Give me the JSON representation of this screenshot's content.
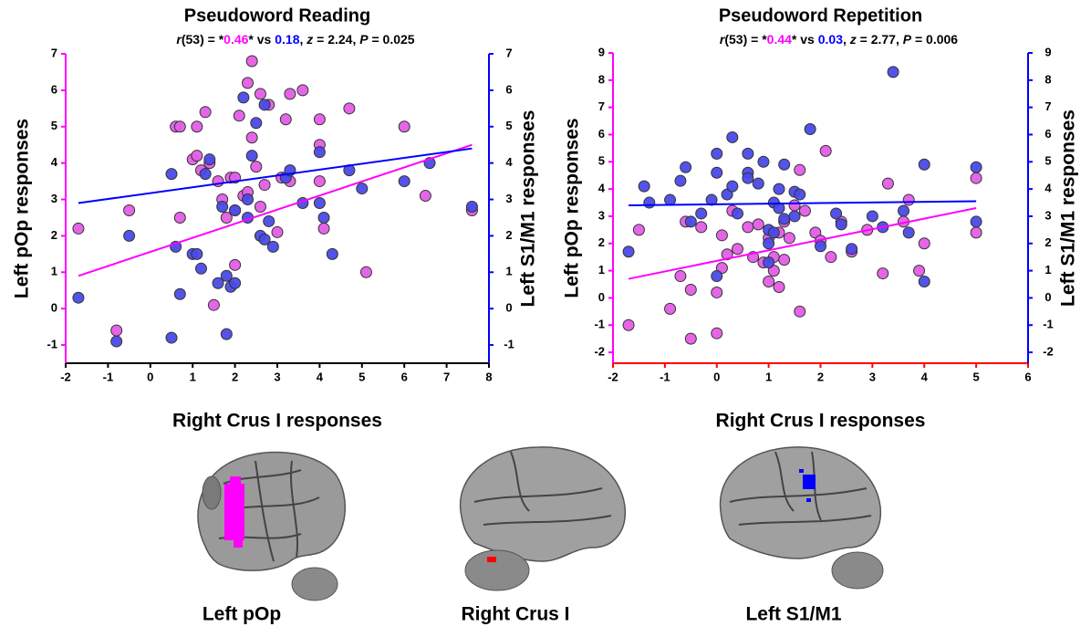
{
  "chart_data": [
    {
      "type": "scatter",
      "title": "Pseudoword Reading",
      "subtitle": [
        {
          "text": "r",
          "italic": true
        },
        {
          "text": "(53) = *"
        },
        {
          "text": "0.46",
          "color": "#ff00ff"
        },
        {
          "text": "* vs "
        },
        {
          "text": "0.18",
          "color": "#0000ff"
        },
        {
          "text": ", "
        },
        {
          "text": "z",
          "italic": true
        },
        {
          "text": " = 2.24, "
        },
        {
          "text": "P",
          "italic": true
        },
        {
          "text": " = 0.025"
        }
      ],
      "x_label": "Right Crus I responses",
      "y_label": "Left pOp responses",
      "y2_label": "Left S1/M1 responses",
      "xlim": [
        -2,
        8
      ],
      "xticks": [
        -2,
        -1,
        0,
        1,
        2,
        3,
        4,
        5,
        6,
        7,
        8
      ],
      "ylim": [
        -1.5,
        7
      ],
      "yticks": [
        -1,
        0,
        1,
        2,
        3,
        4,
        5,
        6,
        7
      ],
      "y2lim": [
        -1.5,
        7
      ],
      "y2ticks": [
        -1,
        0,
        1,
        2,
        3,
        4,
        5,
        6,
        7
      ],
      "x_axis_color": "#000000",
      "y_axis_color": "#ff00ff",
      "y2_axis_color": "#0000ff",
      "series": [
        {
          "color": "#e35ee6",
          "axis": "y",
          "x": [
            -1.7,
            -0.8,
            -0.5,
            0.6,
            0.7,
            0.7,
            1.0,
            1.1,
            1.1,
            1.2,
            1.3,
            1.4,
            1.5,
            1.6,
            1.7,
            1.8,
            1.9,
            2.0,
            2.0,
            2.0,
            2.1,
            2.2,
            2.3,
            2.3,
            2.4,
            2.4,
            2.5,
            2.6,
            2.6,
            2.7,
            2.8,
            3.0,
            3.1,
            3.2,
            3.3,
            3.3,
            3.6,
            4.0,
            4.0,
            4.0,
            4.1,
            4.7,
            5.1,
            6.0,
            6.5,
            7.6
          ],
          "values": [
            2.2,
            -0.6,
            2.7,
            5.0,
            5.0,
            2.5,
            4.1,
            5.0,
            4.2,
            3.8,
            5.4,
            4.0,
            0.1,
            3.5,
            3.0,
            2.5,
            3.6,
            3.6,
            2.7,
            1.2,
            5.3,
            3.1,
            3.2,
            6.2,
            6.8,
            4.7,
            3.9,
            2.8,
            5.9,
            3.4,
            5.6,
            2.1,
            3.6,
            5.2,
            5.9,
            3.5,
            6.0,
            5.2,
            4.5,
            3.5,
            2.2,
            5.5,
            1.0,
            5.0,
            3.1,
            2.7
          ]
        },
        {
          "color": "#4a4ae6",
          "axis": "y2",
          "x": [
            -1.7,
            -0.8,
            -0.5,
            0.5,
            0.5,
            0.6,
            0.7,
            1.0,
            1.1,
            1.2,
            1.3,
            1.4,
            1.6,
            1.7,
            1.8,
            1.8,
            1.9,
            2.0,
            2.0,
            2.2,
            2.3,
            2.3,
            2.4,
            2.5,
            2.6,
            2.7,
            2.7,
            2.8,
            2.9,
            3.2,
            3.3,
            3.6,
            4.0,
            4.0,
            4.1,
            4.3,
            4.7,
            5.0,
            6.0,
            6.6,
            7.6
          ],
          "values": [
            0.3,
            -0.9,
            2.0,
            3.7,
            -0.8,
            1.7,
            0.4,
            1.5,
            1.5,
            1.1,
            3.7,
            4.1,
            0.7,
            2.8,
            0.9,
            -0.7,
            0.6,
            0.7,
            2.7,
            5.8,
            2.5,
            3.0,
            4.2,
            5.1,
            2.0,
            1.9,
            5.6,
            2.4,
            1.7,
            3.6,
            3.8,
            2.9,
            4.3,
            2.9,
            2.5,
            1.5,
            3.8,
            3.3,
            3.5,
            4.0,
            2.8
          ]
        }
      ],
      "trendlines": [
        {
          "color": "#ff00ff",
          "axis": "y",
          "x": [
            -1.7,
            7.6
          ],
          "y": [
            0.9,
            4.5
          ]
        },
        {
          "color": "#0000ff",
          "axis": "y2",
          "x": [
            -1.7,
            7.6
          ],
          "y": [
            2.9,
            4.4
          ]
        }
      ]
    },
    {
      "type": "scatter",
      "title": "Pseudoword Repetition",
      "subtitle": [
        {
          "text": "r",
          "italic": true
        },
        {
          "text": "(53) = *"
        },
        {
          "text": "0.44",
          "color": "#ff00ff"
        },
        {
          "text": "* vs "
        },
        {
          "text": "0.03",
          "color": "#0000ff"
        },
        {
          "text": ", "
        },
        {
          "text": "z",
          "italic": true
        },
        {
          "text": " = 2.77, "
        },
        {
          "text": "P",
          "italic": true
        },
        {
          "text": " = 0.006"
        }
      ],
      "x_label": "Right Crus I responses",
      "y_label": "Left pOp responses",
      "y2_label": "Left S1/M1 responses",
      "xlim": [
        -2,
        6
      ],
      "xticks": [
        -2,
        -1,
        0,
        1,
        2,
        3,
        4,
        5,
        6
      ],
      "ylim": [
        -2.4,
        9
      ],
      "yticks": [
        -2,
        -1,
        0,
        1,
        2,
        3,
        4,
        5,
        6,
        7,
        8,
        9
      ],
      "y2lim": [
        -2.4,
        9
      ],
      "y2ticks": [
        -2,
        -1,
        0,
        1,
        2,
        3,
        4,
        5,
        6,
        7,
        8,
        9
      ],
      "x_axis_color": "#ff0000",
      "y_axis_color": "#ff00ff",
      "y2_axis_color": "#0000ff",
      "series": [
        {
          "color": "#e35ee6",
          "axis": "y",
          "x": [
            -1.7,
            -1.5,
            -0.9,
            -0.7,
            -0.6,
            -0.5,
            -0.5,
            -0.3,
            0.0,
            0.0,
            0.1,
            0.1,
            0.2,
            0.3,
            0.4,
            0.6,
            0.7,
            0.8,
            0.9,
            1.0,
            1.0,
            1.1,
            1.1,
            1.2,
            1.2,
            1.3,
            1.3,
            1.4,
            1.5,
            1.6,
            1.6,
            1.7,
            1.9,
            2.0,
            2.1,
            2.2,
            2.4,
            2.6,
            2.9,
            3.2,
            3.3,
            3.6,
            3.7,
            3.9,
            4.0,
            5.0,
            5.0
          ],
          "values": [
            -1.0,
            2.5,
            -0.4,
            0.8,
            2.8,
            0.3,
            -1.5,
            2.6,
            -1.3,
            0.2,
            1.1,
            2.3,
            1.6,
            3.2,
            1.8,
            2.6,
            1.5,
            2.7,
            1.3,
            0.6,
            2.2,
            1.0,
            1.5,
            0.4,
            2.4,
            1.4,
            2.8,
            2.2,
            3.4,
            4.7,
            -0.5,
            3.2,
            2.4,
            2.1,
            5.4,
            1.5,
            2.8,
            1.7,
            2.5,
            0.9,
            4.2,
            2.8,
            3.6,
            1.0,
            2.0,
            4.4,
            2.4
          ]
        },
        {
          "color": "#4a4ae6",
          "axis": "y2",
          "x": [
            -1.7,
            -1.4,
            -1.3,
            -0.9,
            -0.7,
            -0.6,
            -0.5,
            -0.3,
            -0.1,
            0.0,
            0.0,
            0.0,
            0.2,
            0.3,
            0.3,
            0.4,
            0.6,
            0.6,
            0.6,
            0.8,
            0.9,
            1.0,
            1.0,
            1.0,
            1.1,
            1.1,
            1.2,
            1.2,
            1.3,
            1.3,
            1.5,
            1.5,
            1.6,
            1.8,
            2.0,
            2.3,
            2.4,
            2.6,
            3.0,
            3.2,
            3.4,
            3.6,
            3.7,
            4.0,
            4.0,
            5.0,
            5.0
          ],
          "values": [
            1.7,
            4.1,
            3.5,
            3.6,
            4.3,
            4.8,
            2.8,
            3.1,
            3.6,
            5.3,
            4.6,
            0.8,
            3.8,
            4.1,
            5.9,
            3.1,
            4.6,
            4.4,
            5.3,
            4.2,
            5.0,
            2.5,
            2.0,
            1.3,
            2.4,
            3.5,
            4.0,
            3.3,
            2.9,
            4.9,
            3.0,
            3.9,
            3.8,
            6.2,
            1.9,
            3.1,
            2.7,
            1.8,
            3.0,
            2.6,
            8.3,
            3.2,
            2.4,
            4.9,
            0.6,
            4.8,
            2.8
          ]
        }
      ],
      "trendlines": [
        {
          "color": "#ff00ff",
          "axis": "y",
          "x": [
            -1.7,
            5.0
          ],
          "y": [
            0.7,
            3.3
          ]
        },
        {
          "color": "#0000ff",
          "axis": "y2",
          "x": [
            -1.7,
            5.0
          ],
          "y": [
            3.4,
            3.55
          ]
        }
      ]
    }
  ],
  "brains": {
    "labels": [
      "Left pOp",
      "Right Crus I",
      "Left S1/M1"
    ]
  }
}
